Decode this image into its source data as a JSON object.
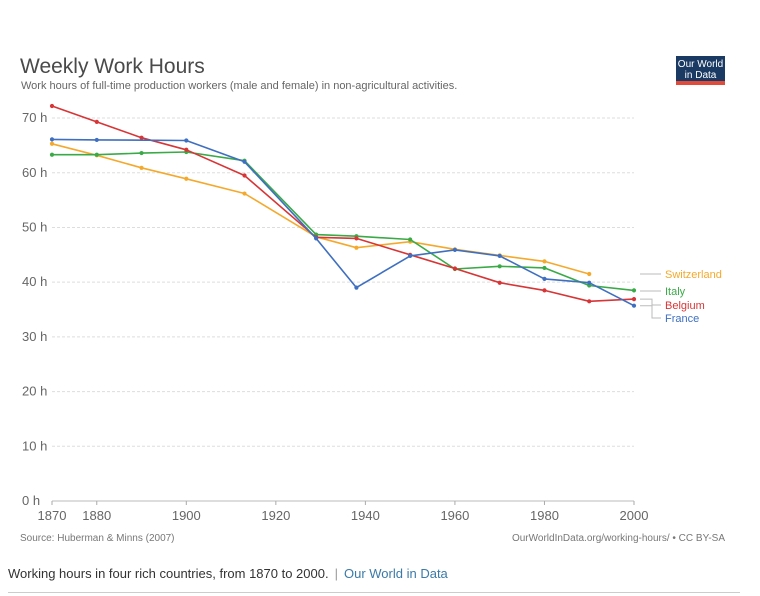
{
  "chart_data": {
    "type": "line",
    "title": "Weekly Work Hours",
    "subtitle": "Work hours of full-time production workers (male and female) in non-agricultural activities.",
    "x_ticks": [
      "1870",
      "1880",
      "1900",
      "1920",
      "1940",
      "1960",
      "1980",
      "2000"
    ],
    "y_ticks": [
      "0 h",
      "10 h",
      "20 h",
      "30 h",
      "40 h",
      "50 h",
      "60 h",
      "70 h"
    ],
    "xlim": [
      1870,
      2000
    ],
    "ylim": [
      0,
      72
    ],
    "grid": true,
    "legend_placement": "right",
    "source": "Source: Huberman & Minns (2007)",
    "credit": "OurWorldInData.org/working-hours/ • CC BY-SA",
    "logo": {
      "line1": "Our World",
      "line2": "in Data"
    },
    "series": [
      {
        "name": "Switzerland",
        "color": "#f4a92c",
        "x": [
          1870,
          1880,
          1890,
          1900,
          1913,
          1929,
          1938,
          1950,
          1960,
          1970,
          1980,
          1990
        ],
        "y": [
          65.3,
          63.2,
          60.9,
          58.9,
          56.2,
          48.3,
          46.3,
          47.4,
          46.0,
          44.9,
          43.8,
          41.5
        ]
      },
      {
        "name": "Italy",
        "color": "#3aaa47",
        "x": [
          1870,
          1880,
          1890,
          1900,
          1913,
          1929,
          1938,
          1950,
          1960,
          1970,
          1980,
          1990,
          2000
        ],
        "y": [
          63.3,
          63.3,
          63.6,
          63.8,
          62.2,
          48.7,
          48.4,
          47.8,
          42.4,
          42.9,
          42.6,
          39.4,
          38.5
        ]
      },
      {
        "name": "Belgium",
        "color": "#d73536",
        "x": [
          1870,
          1880,
          1890,
          1900,
          1913,
          1929,
          1938,
          1950,
          1960,
          1970,
          1980,
          1990,
          2000
        ],
        "y": [
          72.2,
          69.3,
          66.4,
          64.2,
          59.5,
          48.2,
          48.0,
          45.0,
          42.5,
          39.9,
          38.5,
          36.5,
          36.9
        ]
      },
      {
        "name": "France",
        "color": "#3f6fc0",
        "x": [
          1870,
          1880,
          1900,
          1913,
          1929,
          1938,
          1950,
          1960,
          1970,
          1980,
          1990,
          2000
        ],
        "y": [
          66.1,
          66.0,
          65.9,
          62.0,
          48.0,
          39.0,
          44.8,
          45.9,
          44.8,
          40.6,
          39.9,
          35.7
        ]
      }
    ]
  },
  "caption": {
    "text": "Working hours in four rich countries, from 1870 to 2000.",
    "separator": "|",
    "link": "Our World in Data"
  }
}
